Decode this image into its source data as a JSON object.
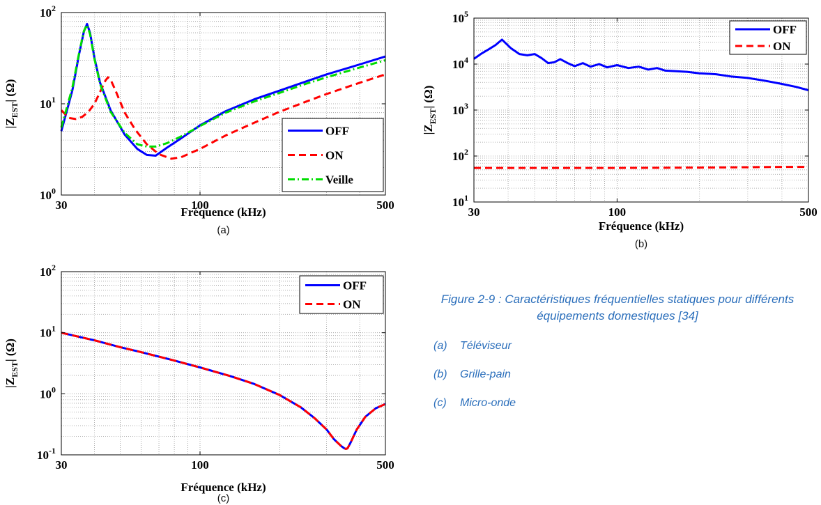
{
  "figure": {
    "caption": "Figure 2-9 : Caractéristiques fréquentielles statiques pour différents équipements domestiques [34]",
    "items": [
      {
        "tag": "(a)",
        "text": "Téléviseur"
      },
      {
        "tag": "(b)",
        "text": "Grille-pain"
      },
      {
        "tag": "(c)",
        "text": "Micro-onde"
      }
    ]
  },
  "chart_data": [
    {
      "type": "line",
      "panel_label": "(a)",
      "xlabel": "Fréquence (kHz)",
      "ylabel_main": "|Z",
      "ylabel_sub": "EST",
      "ylabel_tail": "| (Ω)",
      "x_scale": "log",
      "y_scale": "log",
      "xlim": [
        30,
        500
      ],
      "ylim": [
        1,
        100
      ],
      "x_ticks": [
        {
          "value": 30,
          "label": "30"
        },
        {
          "value": 100,
          "label": "100"
        },
        {
          "value": 500,
          "label": "500"
        }
      ],
      "y_ticks": [
        {
          "value": 1,
          "label": "10",
          "exp": "0"
        },
        {
          "value": 10,
          "label": "10",
          "exp": "1"
        },
        {
          "value": 100,
          "label": "10",
          "exp": "2"
        }
      ],
      "grid": true,
      "legend_position": "bottom-right",
      "series": [
        {
          "name": "OFF",
          "color": "#0000ff",
          "dash": "solid",
          "x": [
            30,
            33,
            35,
            36.5,
            37.5,
            38.5,
            40,
            42,
            46,
            52,
            58,
            63,
            68,
            75,
            85,
            100,
            125,
            160,
            200,
            250,
            300,
            400,
            500
          ],
          "y": [
            5,
            14,
            35,
            62,
            75,
            60,
            32,
            17,
            8.5,
            4.6,
            3.2,
            2.75,
            2.7,
            3.3,
            4.2,
            5.8,
            8.3,
            11.2,
            14,
            17.5,
            21,
            27,
            33
          ]
        },
        {
          "name": "ON",
          "color": "#ff0000",
          "dash": "dashed",
          "x": [
            30,
            32,
            34,
            36,
            38,
            40,
            42,
            44,
            45,
            46,
            48,
            52,
            57,
            63,
            70,
            78,
            85,
            100,
            125,
            160,
            200,
            250,
            300,
            400,
            500
          ],
          "y": [
            8.5,
            7,
            6.8,
            7.2,
            8.2,
            10,
            13.5,
            18,
            19.5,
            18.5,
            14,
            8,
            5.2,
            3.6,
            2.8,
            2.5,
            2.6,
            3.2,
            4.5,
            6.2,
            8.2,
            10.5,
            12.8,
            17,
            21
          ]
        },
        {
          "name": "Veille",
          "color": "#00dd00",
          "dash": "dashdot",
          "x": [
            30,
            33,
            35,
            36.5,
            37.5,
            38.5,
            40,
            42,
            46,
            52,
            58,
            63,
            68,
            75,
            85,
            100,
            125,
            160,
            200,
            250,
            300,
            400,
            500
          ],
          "y": [
            5.5,
            15,
            36,
            63,
            73,
            58,
            31,
            16.5,
            8.2,
            4.8,
            3.6,
            3.4,
            3.4,
            3.7,
            4.4,
            5.7,
            8,
            10.6,
            13.2,
            16.5,
            19.5,
            25,
            30
          ]
        }
      ]
    },
    {
      "type": "line",
      "panel_label": "(b)",
      "xlabel": "Fréquence (kHz)",
      "ylabel_main": "|Z",
      "ylabel_sub": "EST",
      "ylabel_tail": "| (Ω)",
      "x_scale": "log",
      "y_scale": "log",
      "xlim": [
        30,
        500
      ],
      "ylim": [
        10,
        100000
      ],
      "x_ticks": [
        {
          "value": 30,
          "label": "30"
        },
        {
          "value": 100,
          "label": "100"
        },
        {
          "value": 500,
          "label": "500"
        }
      ],
      "y_ticks": [
        {
          "value": 10,
          "label": "10",
          "exp": "1"
        },
        {
          "value": 100,
          "label": "10",
          "exp": "2"
        },
        {
          "value": 1000,
          "label": "10",
          "exp": "3"
        },
        {
          "value": 10000,
          "label": "10",
          "exp": "4"
        },
        {
          "value": 100000,
          "label": "10",
          "exp": "5"
        }
      ],
      "grid": true,
      "legend_position": "top-right",
      "series": [
        {
          "name": "OFF",
          "color": "#0000ff",
          "dash": "solid",
          "x": [
            30,
            32,
            34,
            36,
            38,
            41,
            44,
            47,
            50,
            53,
            56,
            59,
            62,
            66,
            70,
            75,
            80,
            86,
            92,
            100,
            110,
            120,
            130,
            140,
            150,
            165,
            180,
            200,
            230,
            260,
            300,
            350,
            400,
            450,
            500
          ],
          "y": [
            13000,
            17000,
            21000,
            26000,
            34000,
            22000,
            16500,
            15500,
            16500,
            13500,
            10500,
            11000,
            12800,
            10500,
            9000,
            10500,
            8800,
            10000,
            8500,
            9500,
            8200,
            8800,
            7600,
            8200,
            7200,
            7000,
            6800,
            6300,
            6000,
            5400,
            5000,
            4300,
            3700,
            3200,
            2700
          ]
        },
        {
          "name": "ON",
          "color": "#ff0000",
          "dash": "dashed",
          "x": [
            30,
            100,
            200,
            300,
            400,
            500
          ],
          "y": [
            55,
            55,
            56,
            57,
            58,
            58
          ]
        }
      ]
    },
    {
      "type": "line",
      "panel_label": "(c)",
      "xlabel": "Fréquence (kHz)",
      "ylabel_main": "|Z",
      "ylabel_sub": "EST",
      "ylabel_tail": "| (Ω)",
      "x_scale": "log",
      "y_scale": "log",
      "xlim": [
        30,
        500
      ],
      "ylim": [
        0.1,
        100
      ],
      "x_ticks": [
        {
          "value": 30,
          "label": "30"
        },
        {
          "value": 100,
          "label": "100"
        },
        {
          "value": 500,
          "label": "500"
        }
      ],
      "y_ticks": [
        {
          "value": 0.1,
          "label": "10",
          "exp": "-1"
        },
        {
          "value": 1,
          "label": "10",
          "exp": "0"
        },
        {
          "value": 10,
          "label": "10",
          "exp": "1"
        },
        {
          "value": 100,
          "label": "10",
          "exp": "2"
        }
      ],
      "grid": true,
      "legend_position": "top-right",
      "series": [
        {
          "name": "OFF",
          "color": "#0000ff",
          "dash": "solid",
          "x": [
            30,
            40,
            50,
            60,
            80,
            100,
            130,
            160,
            200,
            240,
            270,
            300,
            320,
            340,
            350,
            355,
            360,
            370,
            390,
            420,
            460,
            500
          ],
          "y": [
            10,
            7.5,
            5.8,
            4.8,
            3.5,
            2.7,
            1.95,
            1.45,
            0.95,
            0.6,
            0.4,
            0.26,
            0.18,
            0.14,
            0.128,
            0.125,
            0.128,
            0.16,
            0.26,
            0.42,
            0.58,
            0.68
          ]
        },
        {
          "name": "ON",
          "color": "#ff0000",
          "dash": "dashed",
          "x": [
            30,
            40,
            50,
            60,
            80,
            100,
            130,
            160,
            200,
            240,
            270,
            300,
            320,
            340,
            350,
            355,
            360,
            370,
            390,
            420,
            460,
            500
          ],
          "y": [
            10,
            7.5,
            5.8,
            4.8,
            3.5,
            2.7,
            1.95,
            1.45,
            0.95,
            0.6,
            0.4,
            0.26,
            0.18,
            0.14,
            0.128,
            0.125,
            0.128,
            0.16,
            0.26,
            0.42,
            0.58,
            0.68
          ]
        }
      ]
    }
  ]
}
